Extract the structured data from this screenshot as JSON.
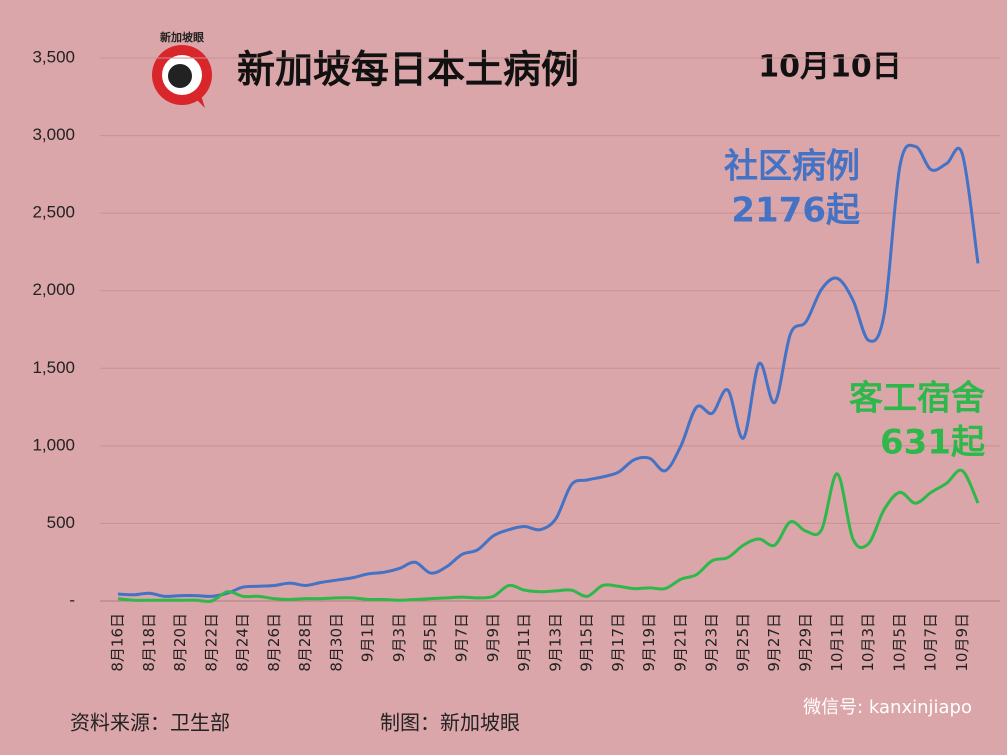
{
  "chart_data": {
    "type": "line",
    "title": "新加坡每日本土病例",
    "subtitle": "10月10日",
    "categories": [
      "8月16日",
      null,
      "8月18日",
      null,
      "8月20日",
      null,
      "8月22日",
      null,
      "8月24日",
      null,
      "8月26日",
      null,
      "8月28日",
      null,
      "8月30日",
      null,
      "9月1日",
      null,
      "9月3日",
      null,
      "9月5日",
      null,
      "9月7日",
      null,
      "9月9日",
      null,
      "9月11日",
      null,
      "9月13日",
      null,
      "9月15日",
      null,
      "9月17日",
      null,
      "9月19日",
      null,
      "9月21日",
      null,
      "9月23日",
      null,
      "9月25日",
      null,
      "9月27日",
      null,
      "9月29日",
      null,
      "10月1日",
      null,
      "10月3日",
      null,
      "10月5日",
      null,
      "10月7日",
      null,
      "10月9日",
      null
    ],
    "series": [
      {
        "name": "社区病例",
        "color": "#4472c4",
        "values": [
          45,
          40,
          50,
          30,
          35,
          35,
          30,
          50,
          90,
          95,
          100,
          115,
          100,
          120,
          135,
          150,
          175,
          185,
          210,
          250,
          180,
          220,
          300,
          330,
          420,
          460,
          480,
          460,
          530,
          750,
          780,
          800,
          830,
          910,
          920,
          840,
          1000,
          1250,
          1210,
          1360,
          1050,
          1530,
          1280,
          1720,
          1800,
          2010,
          2080,
          1940,
          1680,
          1850,
          2800,
          2930,
          2780,
          2820,
          2880,
          2176
        ],
        "value_labels": [
          null,
          null,
          null,
          null,
          null,
          null,
          null,
          null,
          null,
          null,
          null,
          null,
          null,
          null,
          null,
          null,
          null,
          null,
          null,
          null,
          null,
          null,
          null,
          null,
          null,
          null,
          null,
          null,
          null,
          null,
          null,
          null,
          null,
          null,
          null,
          null,
          null,
          null,
          null,
          null,
          null,
          null,
          null,
          null,
          null,
          null,
          null,
          null,
          null,
          null,
          null,
          null,
          null,
          null,
          null,
          "2176起"
        ]
      },
      {
        "name": "客工宿舍",
        "color": "#2eb84b",
        "values": [
          15,
          5,
          5,
          5,
          5,
          5,
          0,
          60,
          30,
          30,
          15,
          10,
          15,
          15,
          20,
          20,
          10,
          10,
          5,
          10,
          15,
          20,
          25,
          20,
          30,
          100,
          70,
          60,
          65,
          70,
          30,
          100,
          95,
          80,
          85,
          80,
          140,
          170,
          260,
          280,
          360,
          400,
          360,
          510,
          450,
          460,
          820,
          400,
          370,
          590,
          700,
          630,
          700,
          760,
          840,
          631
        ],
        "value_labels": [
          null,
          null,
          null,
          null,
          null,
          null,
          null,
          null,
          null,
          null,
          null,
          null,
          null,
          null,
          null,
          null,
          null,
          null,
          null,
          null,
          null,
          null,
          null,
          null,
          null,
          null,
          null,
          null,
          null,
          null,
          null,
          null,
          null,
          null,
          null,
          null,
          null,
          null,
          null,
          null,
          null,
          null,
          null,
          null,
          null,
          null,
          null,
          null,
          null,
          null,
          null,
          null,
          null,
          null,
          null,
          "631起"
        ]
      }
    ],
    "ylim": [
      0,
      3500
    ],
    "yticks": [
      {
        "value": 0,
        "label": "-"
      },
      500,
      {
        "value": 1000,
        "label": "1,000"
      },
      {
        "value": 1500,
        "label": "1,500"
      },
      {
        "value": 2000,
        "label": "2,000"
      },
      {
        "value": 2500,
        "label": "2,500"
      },
      {
        "value": 3000,
        "label": "3,000"
      },
      {
        "value": 3500,
        "label": "3,500"
      }
    ],
    "grid": true
  },
  "logo_text": "新加坡眼",
  "source": "资料来源：卫生部",
  "credit": "制图：新加坡眼",
  "watermark": "微信号: kanxinjiapo"
}
